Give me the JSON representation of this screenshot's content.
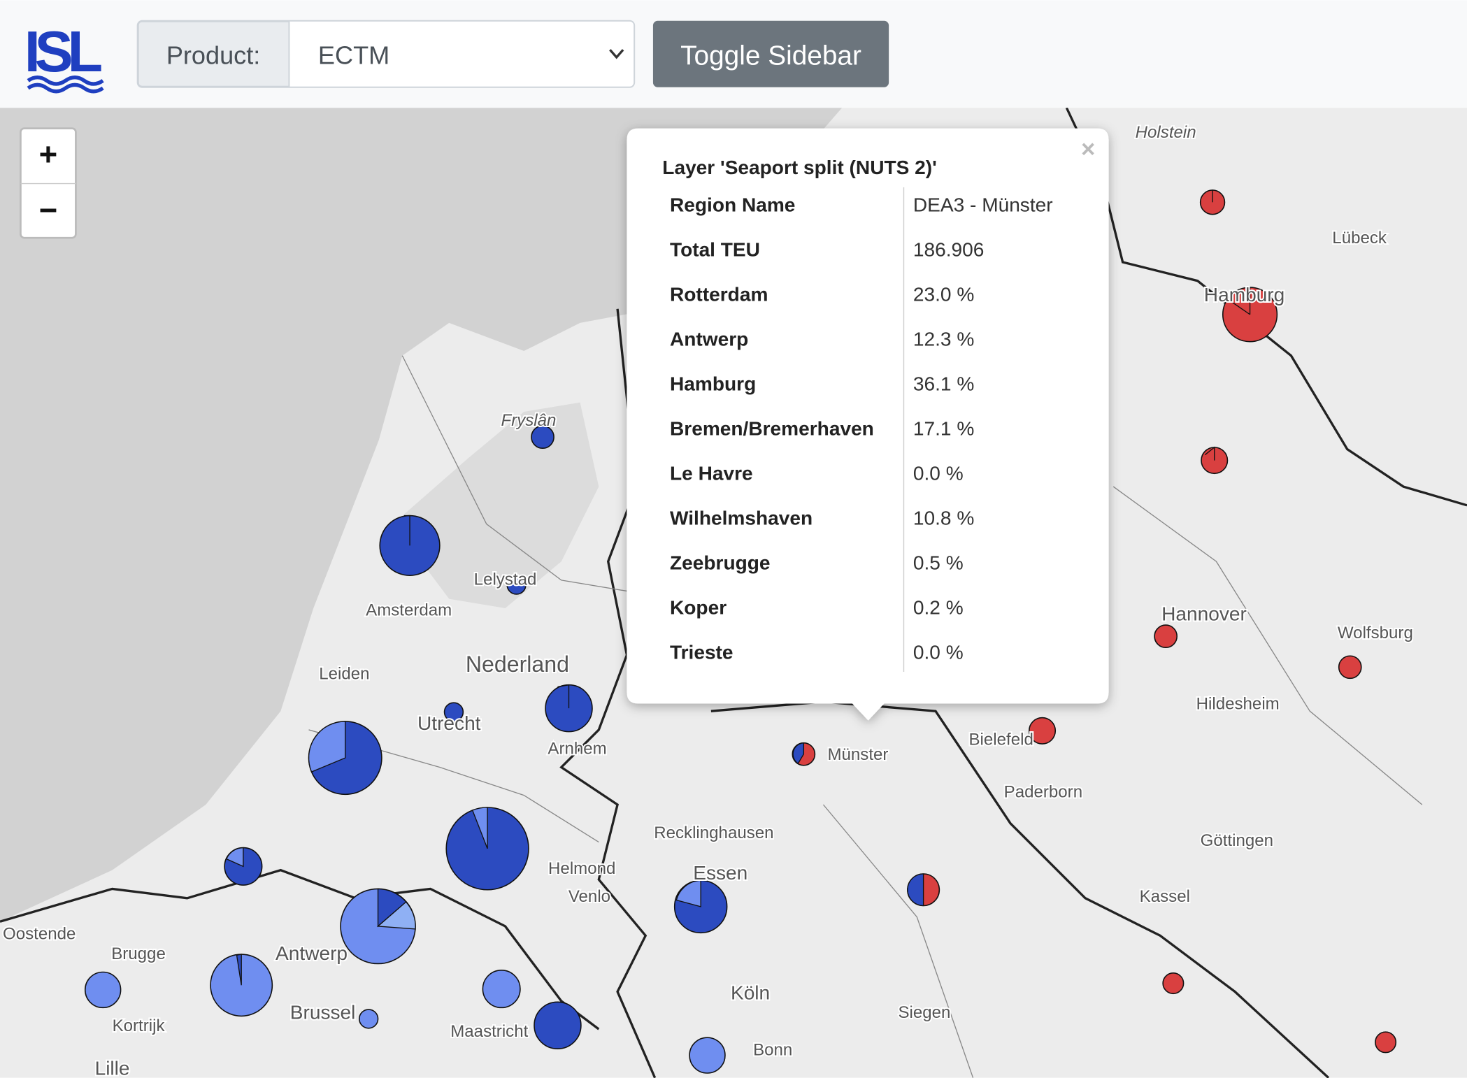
{
  "header": {
    "logo": "ISL",
    "product_label": "Product:",
    "product_value": "ECTM",
    "toggle_button": "Toggle Sidebar"
  },
  "zoom": {
    "in": "+",
    "out": "−"
  },
  "popup": {
    "close": "×",
    "title": "Layer 'Seaport split (NUTS 2)'",
    "rows": [
      [
        "Region Name",
        "DEA3 - Münster"
      ],
      [
        "Total TEU",
        "186.906"
      ],
      [
        "Rotterdam",
        "23.0 %"
      ],
      [
        "Antwerp",
        "12.3 %"
      ],
      [
        "Hamburg",
        "36.1 %"
      ],
      [
        "Bremen/Bremerhaven",
        "17.1 %"
      ],
      [
        "Le Havre",
        "0.0 %"
      ],
      [
        "Wilhelmshaven",
        "10.8 %"
      ],
      [
        "Zeebrugge",
        "0.5 %"
      ],
      [
        "Koper",
        "0.2 %"
      ],
      [
        "Trieste",
        "0.0 %"
      ]
    ]
  },
  "map_labels": [
    "Amsterdam",
    "Nederland",
    "Utrecht",
    "Arnhem",
    "Lelystad",
    "Leiden",
    "Münster",
    "Bielefeld",
    "Paderborn",
    "Hannover",
    "Hamburg",
    "Lübeck",
    "Essen",
    "Köln",
    "Bonn",
    "Siegen",
    "Kassel",
    "Göttingen",
    "Hildesheim",
    "Wolfsburg",
    "Antwerp",
    "Brussel",
    "Maastricht",
    "Brugge",
    "Kortrijk",
    "Helmond",
    "Venlo",
    "Recklinghausen",
    "Holstein",
    "Fryslân",
    "Oostende",
    "Lille"
  ]
}
